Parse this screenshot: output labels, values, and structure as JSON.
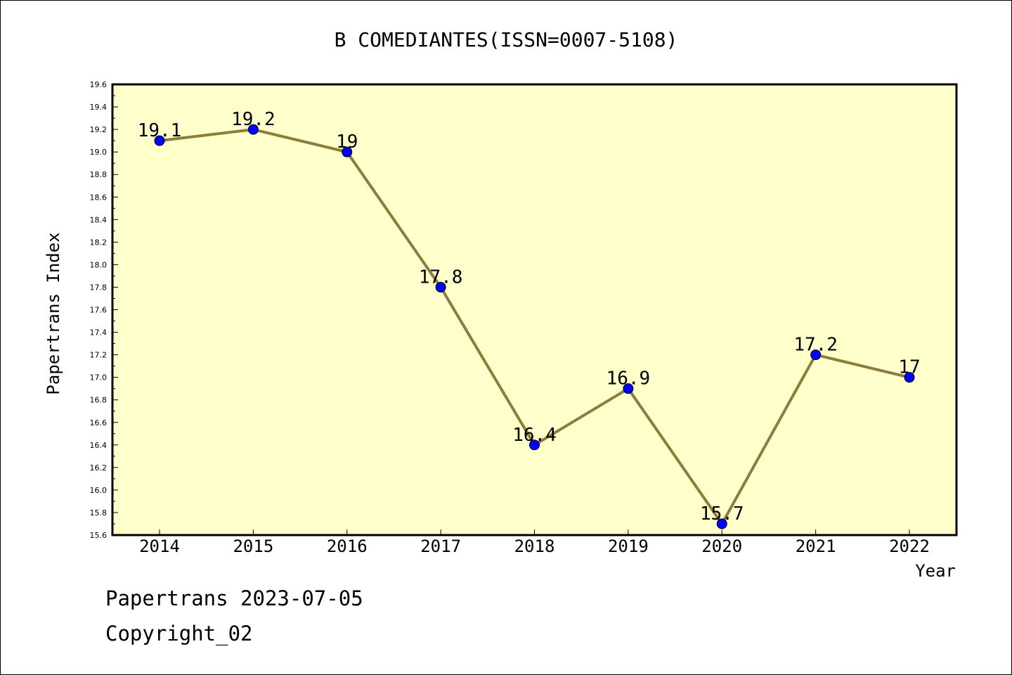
{
  "chart_data": {
    "type": "line",
    "title": "B COMEDIANTES(ISSN=0007-5108)",
    "xlabel": "Year",
    "ylabel": "Papertrans Index",
    "categories": [
      "2014",
      "2015",
      "2016",
      "2017",
      "2018",
      "2019",
      "2020",
      "2021",
      "2022"
    ],
    "series": [
      {
        "values": [
          19.1,
          19.2,
          19.0,
          17.8,
          16.4,
          16.9,
          15.7,
          17.2,
          17.0
        ],
        "labels": [
          "19.1",
          "19.2",
          "19",
          "17.8",
          "16.4",
          "16.9",
          "15.7",
          "17.2",
          "17"
        ]
      }
    ],
    "ylim": [
      15.6,
      19.6
    ],
    "yticks": [
      "15.6",
      "15.8",
      "16.0",
      "16.2",
      "16.4",
      "16.6",
      "16.8",
      "17.0",
      "17.2",
      "17.4",
      "17.6",
      "17.8",
      "18.0",
      "18.2",
      "18.4",
      "18.6",
      "18.8",
      "19.0",
      "19.2",
      "19.4",
      "19.6"
    ],
    "grid": false,
    "colors": {
      "plot_background": "#ffffcc",
      "line": "#8b7d3a",
      "marker": "#0000ff"
    }
  },
  "footer": {
    "line1": "Papertrans 2023-07-05",
    "line2": "Copyright_02"
  }
}
